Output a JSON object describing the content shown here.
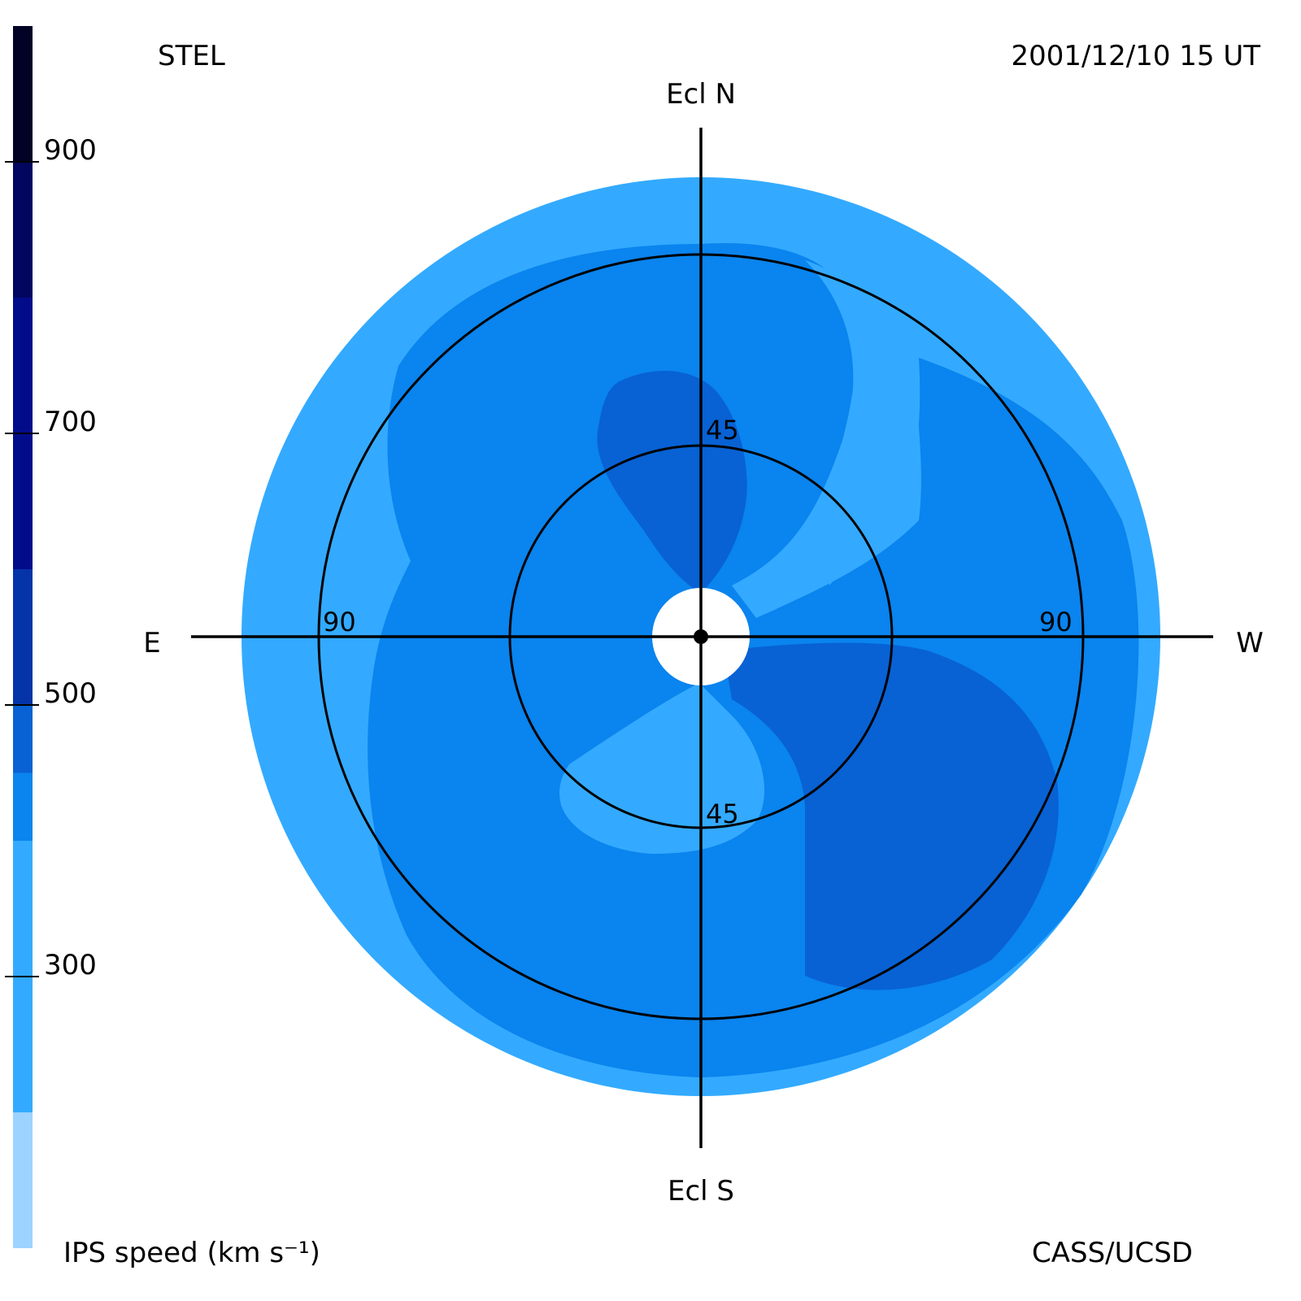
{
  "header": {
    "station": "STEL",
    "datetime": "2001/12/10 15 UT",
    "credit": "CASS/UCSD"
  },
  "colors": {
    "level_1": "#9dd3ff",
    "level_2": "#33aaff",
    "level_3": "#0a84ee",
    "level_4": "#0862d4",
    "level_5": "#0434a8",
    "level_6": "#020c8a",
    "level_7": "#02065e",
    "level_8": "#010226"
  },
  "chart_data": {
    "type": "heatmap",
    "projection": "fish-eye sky map centered on the Sun (elongation in degrees)",
    "colorbar": {
      "label": "IPS speed (km s⁻¹)",
      "range": [
        100,
        1000
      ],
      "levels": [
        {
          "from": 100,
          "to": 200,
          "color": "#9dd3ff"
        },
        {
          "from": 200,
          "to": 400,
          "color": "#33aaff"
        },
        {
          "from": 400,
          "to": 450,
          "color": "#0a84ee"
        },
        {
          "from": 450,
          "to": 500,
          "color": "#0862d4"
        },
        {
          "from": 500,
          "to": 600,
          "color": "#0434a8"
        },
        {
          "from": 600,
          "to": 800,
          "color": "#020c8a"
        },
        {
          "from": 800,
          "to": 900,
          "color": "#02065e"
        },
        {
          "from": 900,
          "to": 1000,
          "color": "#010226"
        }
      ],
      "ticks": [
        "300",
        "500",
        "700",
        "900"
      ]
    },
    "directions": {
      "north": "Ecl N",
      "south": "Ecl S",
      "east": "E",
      "west": "W"
    },
    "elongation_circles": [
      45,
      90
    ],
    "circle_labels": {
      "north": "45",
      "south": "45",
      "east": "90",
      "west": "90"
    },
    "outer_limit_deg": 110,
    "sun_occulted_deg": 12,
    "regions": [
      {
        "level": 2,
        "description": "outer ring and high-latitude north-west band"
      },
      {
        "level": 3,
        "description": "broad mid-latitude zone and western lobe"
      },
      {
        "level": 4,
        "description": "north lobe above the Sun and large south-west lobe"
      }
    ]
  }
}
